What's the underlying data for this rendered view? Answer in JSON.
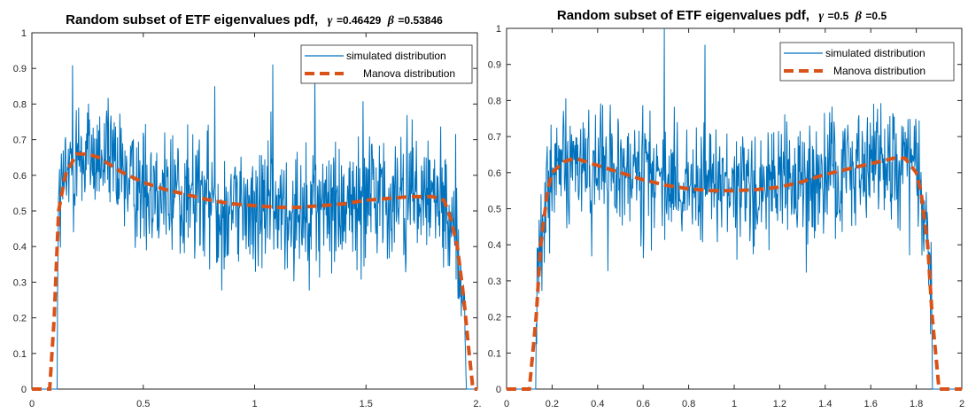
{
  "chart_data": [
    {
      "type": "line",
      "title": {
        "prefix": "Random subset of ETF eigenvalues pdf,",
        "gamma_symbol": "γ",
        "gamma_value": "=0.46429",
        "beta_symbol": "β",
        "beta_value": "=0.53846"
      },
      "xlabel": "",
      "ylabel": "",
      "xlim": [
        0,
        2
      ],
      "ylim": [
        0,
        1
      ],
      "xticks": [
        0,
        0.5,
        1,
        1.5,
        2
      ],
      "xtick_labels": [
        "0",
        "0.5",
        "1",
        "1.5",
        "2."
      ],
      "yticks": [
        0,
        0.1,
        0.2,
        0.3,
        0.4,
        0.5,
        0.6,
        0.7,
        0.8,
        0.9,
        1
      ],
      "ytick_labels": [
        "0",
        "0.1",
        "0.2",
        "0.3",
        "0.4",
        "0.5",
        "0.6",
        "0.7",
        "0.8",
        "0.9",
        "1"
      ],
      "legend": {
        "position": "top-right",
        "entries": [
          "simulated distribution",
          "Manova distribution"
        ]
      },
      "series": [
        {
          "name": "simulated distribution",
          "color": "#0072BD",
          "style": "thin-solid",
          "support": [
            0.115,
            1.95
          ],
          "approx_level": 0.55,
          "approx_spread": 0.1,
          "min_observed": 0.23,
          "max_observed": 1.0
        },
        {
          "name": "Manova distribution",
          "color": "#D95319",
          "style": "thick-dashed",
          "x": [
            0,
            0.08,
            0.1,
            0.12,
            0.15,
            0.2,
            0.25,
            0.3,
            0.4,
            0.5,
            0.6,
            0.7,
            0.8,
            0.9,
            1.0,
            1.1,
            1.2,
            1.3,
            1.4,
            1.5,
            1.6,
            1.7,
            1.8,
            1.85,
            1.88,
            1.91,
            1.94,
            1.96,
            1.98,
            2.0,
            2.05,
            2.1
          ],
          "y": [
            0,
            0,
            0.2,
            0.5,
            0.6,
            0.66,
            0.66,
            0.65,
            0.61,
            0.58,
            0.56,
            0.545,
            0.53,
            0.52,
            0.515,
            0.51,
            0.51,
            0.515,
            0.52,
            0.53,
            0.535,
            0.54,
            0.54,
            0.53,
            0.48,
            0.4,
            0.25,
            0.12,
            0,
            0,
            0,
            0
          ]
        }
      ]
    },
    {
      "type": "line",
      "title": {
        "prefix": "Random subset of ETF eigenvalues pdf,",
        "gamma_symbol": "γ",
        "gamma_value": "=0.5",
        "beta_symbol": "β",
        "beta_value": "=0.5"
      },
      "xlabel": "",
      "ylabel": "",
      "xlim": [
        0,
        2
      ],
      "ylim": [
        0,
        1
      ],
      "xticks": [
        0,
        0.2,
        0.4,
        0.6,
        0.8,
        1,
        1.2,
        1.4,
        1.6,
        1.8,
        2
      ],
      "xtick_labels": [
        "0",
        "0.2",
        "0.4",
        "0.6",
        "0.8",
        "1",
        "1.2",
        "1.4",
        "1.6",
        "1.8",
        "2"
      ],
      "yticks": [
        0,
        0.1,
        0.2,
        0.3,
        0.4,
        0.5,
        0.6,
        0.7,
        0.8,
        0.9,
        1
      ],
      "ytick_labels": [
        "0",
        "0.1",
        "0.2",
        "0.3",
        "0.4",
        "0.5",
        "0.6",
        "0.7",
        "0.8",
        "0.9",
        "1"
      ],
      "legend": {
        "position": "top-right",
        "entries": [
          "simulated distribution",
          "Manova distribution"
        ]
      },
      "series": [
        {
          "name": "simulated distribution",
          "color": "#0072BD",
          "style": "thin-solid",
          "support": [
            0.13,
            1.87
          ],
          "approx_level": 0.57,
          "approx_spread": 0.09,
          "min_observed": 0.33,
          "max_observed": 1.0
        },
        {
          "name": "Manova distribution",
          "color": "#D95319",
          "style": "thick-dashed",
          "x": [
            0,
            0.06,
            0.1,
            0.13,
            0.15,
            0.18,
            0.2,
            0.25,
            0.3,
            0.4,
            0.5,
            0.6,
            0.7,
            0.8,
            0.9,
            1.0,
            1.1,
            1.2,
            1.3,
            1.4,
            1.5,
            1.6,
            1.7,
            1.75,
            1.8,
            1.82,
            1.85,
            1.87,
            1.9,
            1.94,
            2.0
          ],
          "y": [
            0,
            0,
            0,
            0.2,
            0.4,
            0.55,
            0.6,
            0.63,
            0.64,
            0.62,
            0.6,
            0.58,
            0.565,
            0.555,
            0.55,
            0.55,
            0.553,
            0.56,
            0.575,
            0.595,
            0.61,
            0.625,
            0.64,
            0.64,
            0.6,
            0.55,
            0.4,
            0.2,
            0,
            0,
            0
          ]
        }
      ]
    }
  ]
}
